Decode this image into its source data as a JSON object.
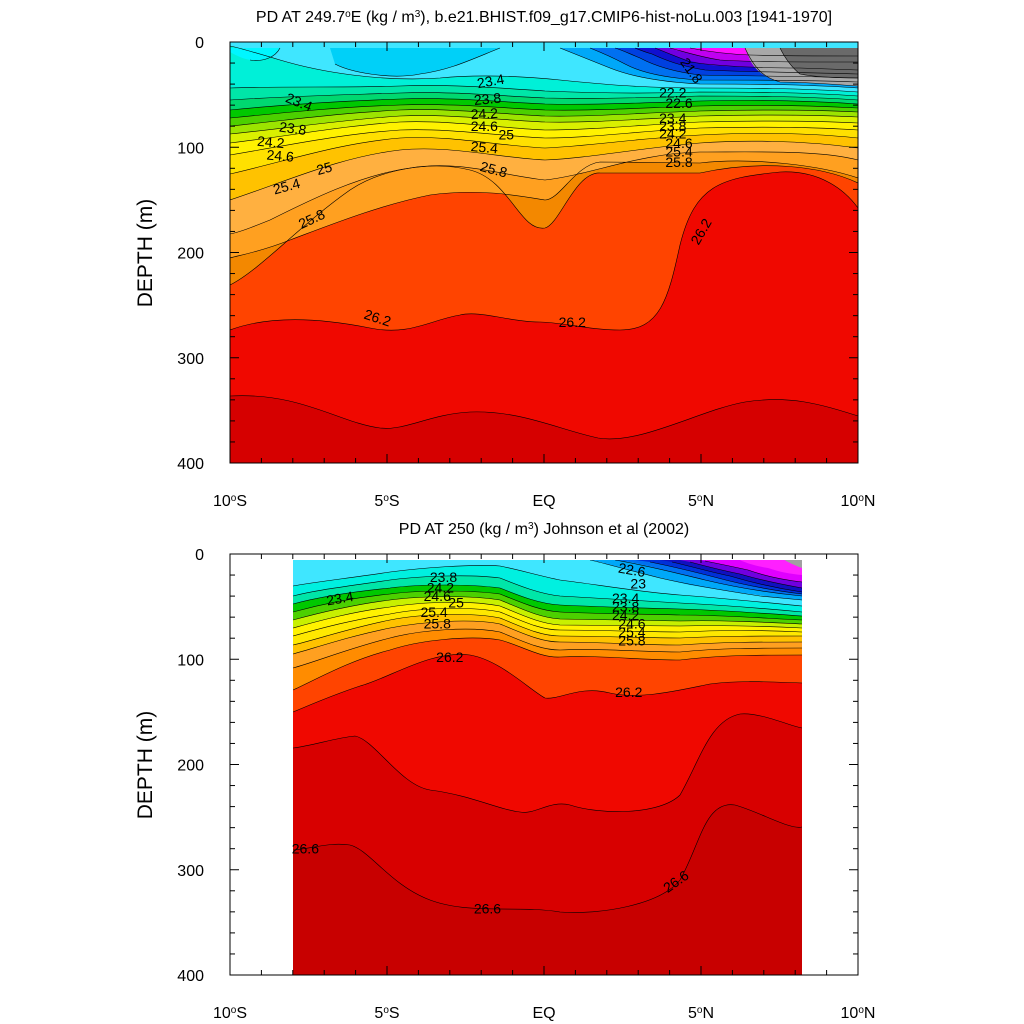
{
  "chart_data": [
    {
      "type": "contour",
      "title": "PD AT 249.7°E (kg / m³), b.e21.BHIST.f09_g17.CMIP6-hist-noLu.003 [1941-1970]",
      "title_parts": {
        "pre": "PD AT 249.7",
        "sup1": "o",
        "mid": "E (kg / m",
        "sup2": "3",
        "post": "), b.e21.BHIST.f09_g17.CMIP6-hist-noLu.003 [1941-1970]"
      },
      "ylabel": "DEPTH (m)",
      "xlim": [
        -10,
        10
      ],
      "ylim": [
        400,
        0
      ],
      "yticks": [
        0,
        100,
        200,
        300,
        400
      ],
      "xticks": [
        -10,
        -5,
        0,
        5,
        10
      ],
      "xtick_labels": [
        {
          "num": "10",
          "deg": "o",
          "hem": "S"
        },
        {
          "num": "5",
          "deg": "o",
          "hem": "S"
        },
        {
          "num": "EQ",
          "deg": "",
          "hem": ""
        },
        {
          "num": "5",
          "deg": "o",
          "hem": "N"
        },
        {
          "num": "10",
          "deg": "o",
          "hem": "N"
        }
      ],
      "data_xrange": [
        -10,
        10
      ],
      "data_depth_top": 5,
      "contour_labels": [
        {
          "text": "23.4",
          "x": -7.8,
          "depth": 57,
          "rot": 22
        },
        {
          "text": "23.8",
          "x": -8.0,
          "depth": 82,
          "rot": 8
        },
        {
          "text": "24.2",
          "x": -8.7,
          "depth": 95,
          "rot": 5
        },
        {
          "text": "24.6",
          "x": -8.4,
          "depth": 108,
          "rot": 5
        },
        {
          "text": "25",
          "x": -7.0,
          "depth": 120,
          "rot": -15
        },
        {
          "text": "25.4",
          "x": -8.2,
          "depth": 137,
          "rot": -15
        },
        {
          "text": "25.8",
          "x": -7.4,
          "depth": 168,
          "rot": -25
        },
        {
          "text": "23.4",
          "x": -1.7,
          "depth": 37,
          "rot": -10
        },
        {
          "text": "23.8",
          "x": -1.8,
          "depth": 54,
          "rot": -5
        },
        {
          "text": "24.2",
          "x": -1.9,
          "depth": 68,
          "rot": -3
        },
        {
          "text": "24.6",
          "x": -1.9,
          "depth": 80,
          "rot": 0
        },
        {
          "text": "25",
          "x": -1.2,
          "depth": 88,
          "rot": 0
        },
        {
          "text": "25.4",
          "x": -1.9,
          "depth": 100,
          "rot": 5
        },
        {
          "text": "25.8",
          "x": -1.6,
          "depth": 121,
          "rot": 15
        },
        {
          "text": "21.8",
          "x": 4.7,
          "depth": 27,
          "rot": 55
        },
        {
          "text": "22.2",
          "x": 4.1,
          "depth": 48,
          "rot": 0
        },
        {
          "text": "22.6",
          "x": 4.3,
          "depth": 58,
          "rot": 0
        },
        {
          "text": "23.4",
          "x": 4.1,
          "depth": 72,
          "rot": 0
        },
        {
          "text": "23.8",
          "x": 4.1,
          "depth": 80,
          "rot": 0
        },
        {
          "text": "24.2",
          "x": 4.1,
          "depth": 87,
          "rot": 0
        },
        {
          "text": "24.6",
          "x": 4.3,
          "depth": 96,
          "rot": 0
        },
        {
          "text": "25.4",
          "x": 4.3,
          "depth": 104,
          "rot": 0
        },
        {
          "text": "25.8",
          "x": 4.3,
          "depth": 114,
          "rot": 0
        },
        {
          "text": "26.2",
          "x": 5.0,
          "depth": 180,
          "rot": -60
        },
        {
          "text": "26.2",
          "x": -5.3,
          "depth": 262,
          "rot": 18
        },
        {
          "text": "26.2",
          "x": 0.9,
          "depth": 266,
          "rot": 0
        }
      ]
    },
    {
      "type": "contour",
      "title": "PD AT 250 (kg / m³) Johnson et al (2002)",
      "title_parts": {
        "pre": "PD AT 250 (kg / m",
        "sup1": "3",
        "mid": ") Johnson et al (2002)",
        "sup2": "",
        "post": ""
      },
      "ylabel": "DEPTH (m)",
      "xlim": [
        -10,
        10
      ],
      "ylim": [
        400,
        0
      ],
      "yticks": [
        0,
        100,
        200,
        300,
        400
      ],
      "xticks": [
        -10,
        -5,
        0,
        5,
        10
      ],
      "xtick_labels": [
        {
          "num": "10",
          "deg": "o",
          "hem": "S"
        },
        {
          "num": "5",
          "deg": "o",
          "hem": "S"
        },
        {
          "num": "EQ",
          "deg": "",
          "hem": ""
        },
        {
          "num": "5",
          "deg": "o",
          "hem": "N"
        },
        {
          "num": "10",
          "deg": "o",
          "hem": "N"
        }
      ],
      "data_xrange": [
        -8,
        8.2
      ],
      "data_depth_top": 5,
      "contour_labels": [
        {
          "text": "23.4",
          "x": -6.5,
          "depth": 42,
          "rot": -10
        },
        {
          "text": "23.8",
          "x": -3.2,
          "depth": 22,
          "rot": 0
        },
        {
          "text": "24.2",
          "x": -3.3,
          "depth": 32,
          "rot": 0
        },
        {
          "text": "24.6",
          "x": -3.4,
          "depth": 40,
          "rot": 0
        },
        {
          "text": "25",
          "x": -2.8,
          "depth": 46,
          "rot": 0
        },
        {
          "text": "25.4",
          "x": -3.5,
          "depth": 55,
          "rot": 0
        },
        {
          "text": "25.8",
          "x": -3.4,
          "depth": 66,
          "rot": 0
        },
        {
          "text": "26.2",
          "x": -3.0,
          "depth": 98,
          "rot": 0
        },
        {
          "text": "22.6",
          "x": 2.8,
          "depth": 15,
          "rot": 10
        },
        {
          "text": "23",
          "x": 3.0,
          "depth": 28,
          "rot": 0
        },
        {
          "text": "23.4",
          "x": 2.6,
          "depth": 42,
          "rot": 0
        },
        {
          "text": "23.8",
          "x": 2.6,
          "depth": 50,
          "rot": 0
        },
        {
          "text": "24.2",
          "x": 2.6,
          "depth": 58,
          "rot": 0
        },
        {
          "text": "24.6",
          "x": 2.8,
          "depth": 66,
          "rot": 0
        },
        {
          "text": "25.4",
          "x": 2.8,
          "depth": 74,
          "rot": 0
        },
        {
          "text": "25.8",
          "x": 2.8,
          "depth": 82,
          "rot": 0
        },
        {
          "text": "26.2",
          "x": 2.7,
          "depth": 131,
          "rot": 0
        },
        {
          "text": "26.6",
          "x": -7.6,
          "depth": 280,
          "rot": 0
        },
        {
          "text": "26.6",
          "x": -1.8,
          "depth": 337,
          "rot": 0
        },
        {
          "text": "26.6",
          "x": 4.2,
          "depth": 311,
          "rot": -35
        }
      ]
    }
  ]
}
